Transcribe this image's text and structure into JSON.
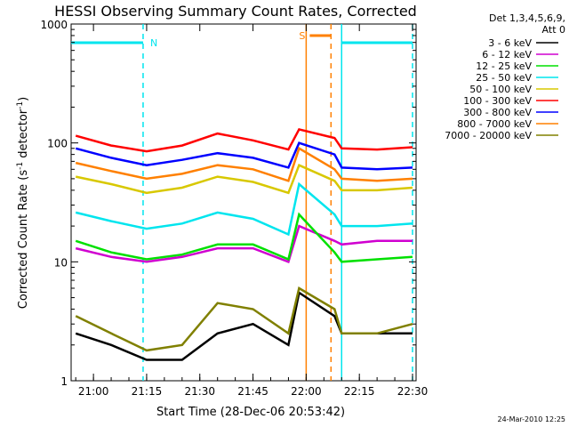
{
  "chart_data": {
    "type": "line",
    "title": "HESSI Observing Summary Count Rates, Corrected",
    "xlabel": "Start Time (28-Dec-06 20:53:42)",
    "ylabel": "Corrected Count Rate (s",
    "ylabel_sup": "-1",
    "ylabel_tail": " detector",
    "ylabel_sup2": "-1",
    "ylabel_close": ")",
    "yscale": "log",
    "ylim": [
      1,
      1000
    ],
    "xlim": [
      "20:53:42",
      "22:31:00"
    ],
    "x_ticks": [
      "21:00",
      "21:15",
      "21:30",
      "21:45",
      "22:00",
      "22:15",
      "22:30"
    ],
    "y_ticks": [
      "1",
      "10",
      "100",
      "1000"
    ],
    "legend_header": [
      "Det 1,3,4,5,6,9,",
      "Att 0"
    ],
    "legend_position": "right",
    "timestamp": "24-Mar-2010 12:25",
    "flags": [
      {
        "label": "N",
        "start": "20:53:42",
        "end": "21:14:00",
        "color": "#00e5ee"
      },
      {
        "label": "S",
        "start": "22:01:00",
        "end": "22:07:00",
        "color": "#ff8000"
      },
      {
        "label": "",
        "start": "22:10:00",
        "end": "22:30:00",
        "color": "#00e5ee"
      }
    ],
    "markers": [
      {
        "time": "21:14:00",
        "style": "dashed",
        "color": "#00e5ee"
      },
      {
        "time": "22:00:00",
        "style": "solid",
        "color": "#ff8000"
      },
      {
        "time": "22:07:00",
        "style": "dashed",
        "color": "#ff8000"
      },
      {
        "time": "22:10:00",
        "style": "solid",
        "color": "#00e5ee"
      },
      {
        "time": "22:30:00",
        "style": "dashed",
        "color": "#00e5ee"
      }
    ],
    "x": [
      "20:55",
      "21:05",
      "21:15",
      "21:25",
      "21:35",
      "21:45",
      "21:55",
      "21:58",
      "22:08",
      "22:10",
      "22:20",
      "22:30"
    ],
    "series": [
      {
        "name": "3 - 6 keV",
        "color": "#000000",
        "values": [
          2.5,
          2.0,
          1.5,
          1.5,
          2.5,
          3.0,
          2.0,
          5.5,
          3.5,
          2.5,
          2.5,
          2.5
        ]
      },
      {
        "name": "6 - 12 keV",
        "color": "#d000d0",
        "values": [
          13.0,
          11.0,
          10.0,
          11.0,
          13.0,
          13.0,
          10.0,
          20.0,
          15.0,
          14.0,
          15.0,
          15.0
        ]
      },
      {
        "name": "12 - 25 keV",
        "color": "#00e000",
        "values": [
          15.0,
          12.0,
          10.5,
          11.5,
          14.0,
          14.0,
          10.5,
          25.0,
          12.0,
          10.0,
          10.5,
          11.0
        ]
      },
      {
        "name": "25 - 50 keV",
        "color": "#00e5ee",
        "values": [
          26.0,
          22.0,
          19.0,
          21.0,
          26.0,
          23.0,
          17.0,
          45.0,
          25.0,
          20.0,
          20.0,
          21.0
        ]
      },
      {
        "name": "50 - 100 keV",
        "color": "#d8c800",
        "values": [
          52.0,
          45.0,
          38.0,
          42.0,
          52.0,
          47.0,
          38.0,
          65.0,
          48.0,
          40.0,
          40.0,
          42.0
        ]
      },
      {
        "name": "100 - 300 keV",
        "color": "#ff0000",
        "values": [
          115.0,
          95.0,
          85.0,
          95.0,
          120.0,
          105.0,
          88.0,
          130.0,
          110.0,
          90.0,
          88.0,
          92.0
        ]
      },
      {
        "name": "300 - 800 keV",
        "color": "#0000ff",
        "values": [
          90.0,
          75.0,
          65.0,
          72.0,
          82.0,
          75.0,
          62.0,
          100.0,
          80.0,
          62.0,
          60.0,
          62.0
        ]
      },
      {
        "name": "800 - 7000 keV",
        "color": "#ff8000",
        "values": [
          68.0,
          58.0,
          50.0,
          55.0,
          65.0,
          60.0,
          48.0,
          90.0,
          60.0,
          50.0,
          48.0,
          50.0
        ]
      },
      {
        "name": "7000 - 20000 keV",
        "color": "#808000",
        "values": [
          3.5,
          2.5,
          1.8,
          2.0,
          4.5,
          4.0,
          2.5,
          6.0,
          4.0,
          2.5,
          2.5,
          3.0
        ]
      }
    ]
  }
}
